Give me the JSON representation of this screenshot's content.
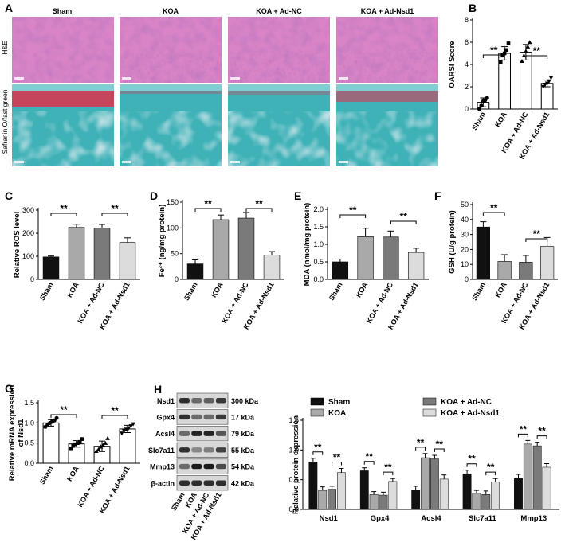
{
  "colors": {
    "sham": "#111111",
    "koa": "#a9a9a9",
    "adnc": "#7a7a7a",
    "adnsd1": "#dcdcdc",
    "he_bg": "#d884c6",
    "he_dark": "#7a2f86",
    "saf_bg": "#3fb2b8",
    "saf_red": "#d43a52"
  },
  "groups": [
    "Sham",
    "KOA",
    "KOA + Ad-NC",
    "KOA + Ad-Nsd1"
  ],
  "sig": "**",
  "panel_a": {
    "letter": "A",
    "row_labels": [
      "H&E",
      "Safranin O/fast green"
    ]
  },
  "chart_data": [
    {
      "id": "B",
      "type": "bar",
      "ylabel": "OARSI Score",
      "ylim": [
        0,
        8
      ],
      "ticks": [
        0,
        2,
        4,
        6,
        8
      ],
      "values": [
        0.6,
        5.0,
        5.1,
        2.3
      ],
      "errors": [
        0.4,
        0.6,
        0.7,
        0.3
      ],
      "points": [
        [
          0,
          0.3,
          0.7,
          0.8,
          1.0
        ],
        [
          4.2,
          4.8,
          5.0,
          5.3,
          5.9
        ],
        [
          4.3,
          4.8,
          5.2,
          5.6,
          6.0
        ],
        [
          2.0,
          2.2,
          2.3,
          2.5,
          2.8
        ]
      ],
      "markers": [
        "circle",
        "square",
        "triangle",
        "triangle-down"
      ],
      "sig": [
        [
          0,
          1
        ],
        [
          2,
          3
        ]
      ]
    },
    {
      "id": "C",
      "type": "bar",
      "ylabel": "Relative ROS level",
      "ylim": [
        0,
        300
      ],
      "ticks": [
        0,
        100,
        200,
        300
      ],
      "values": [
        97,
        225,
        222,
        160
      ],
      "errors": [
        4,
        14,
        16,
        20
      ],
      "sig": [
        [
          0,
          1
        ],
        [
          2,
          3
        ]
      ]
    },
    {
      "id": "D",
      "type": "bar",
      "ylabel": "Fe²⁺ (ng/mg protein)",
      "ylim": [
        0,
        150
      ],
      "ticks": [
        0,
        50,
        100,
        150
      ],
      "values": [
        30,
        116,
        119,
        47
      ],
      "errors": [
        8,
        9,
        11,
        7
      ],
      "sig": [
        [
          0,
          1
        ],
        [
          2,
          3
        ]
      ]
    },
    {
      "id": "E",
      "type": "bar",
      "ylabel": "MDA (nmol/mg protein)",
      "ylim": [
        0,
        2.0
      ],
      "ticks": [
        0.0,
        0.5,
        1.0,
        1.5,
        2.0
      ],
      "values": [
        0.5,
        1.22,
        1.21,
        0.77
      ],
      "errors": [
        0.08,
        0.24,
        0.17,
        0.12
      ],
      "sig": [
        [
          0,
          1
        ],
        [
          2,
          3
        ]
      ]
    },
    {
      "id": "F",
      "type": "bar",
      "ylabel": "GSH (U/g protein)",
      "ylim": [
        0,
        50
      ],
      "ticks": [
        0,
        10,
        20,
        30,
        40,
        50
      ],
      "values": [
        35,
        12,
        11.5,
        22
      ],
      "errors": [
        3.5,
        4.5,
        4.5,
        6
      ],
      "sig": [
        [
          0,
          1
        ],
        [
          2,
          3
        ]
      ]
    },
    {
      "id": "G",
      "type": "bar",
      "ylabel": "Relative mRNA expression of Nsd1",
      "ylim": [
        0,
        1.5
      ],
      "ticks": [
        0.0,
        0.5,
        1.0,
        1.5
      ],
      "values": [
        1.0,
        0.48,
        0.42,
        0.85
      ],
      "errors": [
        0.08,
        0.08,
        0.13,
        0.09
      ],
      "points": [
        [
          0.9,
          0.96,
          1.0,
          1.03,
          1.06,
          1.12
        ],
        [
          0.37,
          0.43,
          0.47,
          0.5,
          0.53,
          0.6
        ],
        [
          0.3,
          0.35,
          0.41,
          0.45,
          0.5,
          0.62
        ],
        [
          0.74,
          0.8,
          0.84,
          0.87,
          0.92,
          0.97
        ]
      ],
      "markers": [
        "circle",
        "square",
        "triangle",
        "triangle-down"
      ],
      "sig": [
        [
          0,
          1
        ],
        [
          2,
          3
        ]
      ]
    },
    {
      "id": "H",
      "type": "grouped-bar",
      "ylabel": "Relative protein expression",
      "ylim": [
        0,
        1.5
      ],
      "ticks": [
        0.0,
        0.5,
        1.0,
        1.5
      ],
      "categories": [
        "Nsd1",
        "Gpx4",
        "Acsl4",
        "Slc7a11",
        "Mmp13"
      ],
      "series": [
        {
          "name": "Sham",
          "values": [
            0.8,
            0.65,
            0.32,
            0.6,
            0.52
          ],
          "errors": [
            0.06,
            0.05,
            0.07,
            0.06,
            0.07
          ]
        },
        {
          "name": "KOA",
          "values": [
            0.32,
            0.25,
            0.87,
            0.27,
            1.1
          ],
          "errors": [
            0.06,
            0.05,
            0.07,
            0.05,
            0.06
          ]
        },
        {
          "name": "KOA + Ad-NC",
          "values": [
            0.34,
            0.24,
            0.85,
            0.25,
            1.07
          ],
          "errors": [
            0.05,
            0.05,
            0.06,
            0.06,
            0.06
          ]
        },
        {
          "name": "KOA + Ad-Nsd1",
          "values": [
            0.62,
            0.47,
            0.51,
            0.46,
            0.71
          ],
          "errors": [
            0.07,
            0.05,
            0.07,
            0.06,
            0.06
          ]
        }
      ]
    }
  ],
  "blot": {
    "letter": "H",
    "bands": [
      {
        "protein": "Nsd1",
        "kda": "300 kDa"
      },
      {
        "protein": "Gpx4",
        "kda": "17 kDa"
      },
      {
        "protein": "Acsl4",
        "kda": "79 kDa"
      },
      {
        "protein": "Slc7a11",
        "kda": "55 kDa"
      },
      {
        "protein": "Mmp13",
        "kda": "54 kDa"
      },
      {
        "protein": "β-actin",
        "kda": "42 kDa"
      }
    ],
    "intensities": [
      [
        0.85,
        0.55,
        0.6,
        0.8
      ],
      [
        0.85,
        0.55,
        0.55,
        0.8
      ],
      [
        0.55,
        0.9,
        0.9,
        0.65
      ],
      [
        0.85,
        0.4,
        0.45,
        0.75
      ],
      [
        0.55,
        0.95,
        0.95,
        0.7
      ],
      [
        0.85,
        0.85,
        0.85,
        0.85
      ]
    ]
  }
}
